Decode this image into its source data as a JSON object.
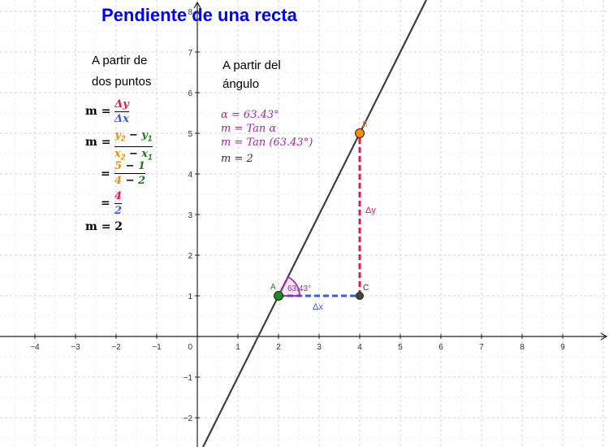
{
  "title": "Pendiente de una recta",
  "left_panel": {
    "heading_line1": "A partir de",
    "heading_line2": "dos puntos",
    "m_label": "m",
    "equals": "=",
    "f1_num": "Δy",
    "f1_den": "Δx",
    "f2_num_a": "y",
    "f2_num_a_sub": "2",
    "f2_num_op": " − ",
    "f2_num_b": "y",
    "f2_num_b_sub": "1",
    "f2_den_a": "x",
    "f2_den_a_sub": "2",
    "f2_den_op": " − ",
    "f2_den_b": "x",
    "f2_den_b_sub": "1",
    "f3_num_a": "5",
    "f3_num_op": " − ",
    "f3_num_b": "1",
    "f3_den_a": "4",
    "f3_den_op": " − ",
    "f3_den_b": "2",
    "f4_num": "4",
    "f4_den": "2",
    "result": "m = 2"
  },
  "right_panel": {
    "heading_line1": "A partir del",
    "heading_line2": "ángulo",
    "line1": "α = 63.43°",
    "line2_m": "m = ",
    "line2_rest": "Tan α",
    "line3_m": "m = ",
    "line3_rest": "Tan (63.43°)",
    "line4": "m = 2"
  },
  "axes": {
    "x_ticks": [
      -4,
      -3,
      -2,
      -1,
      0,
      1,
      2,
      3,
      4,
      5,
      6,
      7,
      8,
      9
    ],
    "y_ticks": [
      -2,
      -1,
      1,
      2,
      3,
      4,
      5,
      6,
      7,
      8
    ],
    "origin_label": "0"
  },
  "line": {
    "slope": 2,
    "intercept": -3
  },
  "points": {
    "A": {
      "label": "A",
      "x": 2,
      "y": 1,
      "color": "#1e8c1e"
    },
    "B": {
      "label": "B",
      "x": 4,
      "y": 5,
      "color": "#ff8c00"
    },
    "C": {
      "label": "C",
      "x": 4,
      "y": 1,
      "color": "#444444"
    }
  },
  "angle_label": "63.43°",
  "dx_label": "Δx",
  "dy_label": "Δy",
  "colors": {
    "title": "#0000ff",
    "delta_y": "#e6194b",
    "delta_x": "#3c5be0",
    "purple": "#9e2aa6",
    "orange": "#f08c00",
    "green": "#1e7a1e",
    "line": "#404040"
  }
}
